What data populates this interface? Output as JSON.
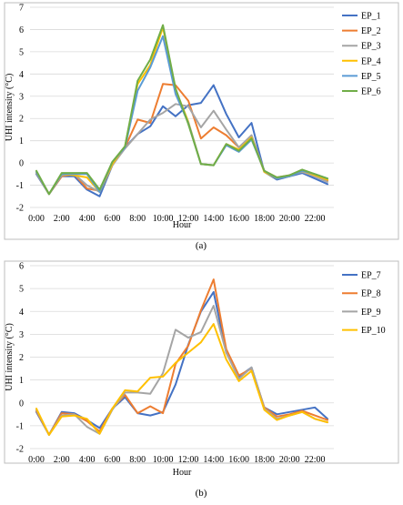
{
  "chart_data": [
    {
      "type": "line",
      "panel_label": "(a)",
      "xlabel": "Hour",
      "ylabel": "UHI intensity (°C)",
      "ylim": [
        -2,
        7
      ],
      "yticks": [
        -2,
        -1,
        0,
        1,
        2,
        3,
        4,
        5,
        6,
        7
      ],
      "x": [
        "0:00",
        "1:00",
        "2:00",
        "3:00",
        "4:00",
        "5:00",
        "6:00",
        "7:00",
        "8:00",
        "9:00",
        "10:00",
        "11:00",
        "12:00",
        "13:00",
        "14:00",
        "15:00",
        "16:00",
        "17:00",
        "18:00",
        "19:00",
        "20:00",
        "21:00",
        "22:00",
        "23:00"
      ],
      "xtick_labels": [
        "0:00",
        "2:00",
        "4:00",
        "6:00",
        "8:00",
        "10:00",
        "12:00",
        "14:00",
        "16:00",
        "18:00",
        "20:00",
        "22:00"
      ],
      "grid": true,
      "legend": "right",
      "series": [
        {
          "name": "EP_1",
          "color": "#4472c4",
          "values": [
            -0.5,
            -1.4,
            -0.6,
            -0.6,
            -1.2,
            -1.5,
            -0.1,
            0.7,
            1.3,
            1.65,
            2.55,
            2.1,
            2.6,
            2.7,
            3.5,
            2.2,
            1.15,
            1.8,
            -0.4,
            -0.75,
            -0.6,
            -0.45,
            -0.7,
            -0.95
          ]
        },
        {
          "name": "EP_2",
          "color": "#ed7d31",
          "values": [
            -0.45,
            -1.4,
            -0.6,
            -0.5,
            -1.15,
            -1.25,
            -0.1,
            0.7,
            1.95,
            1.8,
            3.55,
            3.5,
            2.8,
            1.1,
            1.6,
            1.25,
            0.7,
            1.2,
            -0.35,
            -0.65,
            -0.55,
            -0.35,
            -0.6,
            -0.8
          ]
        },
        {
          "name": "EP_3",
          "color": "#a5a5a5",
          "values": [
            -0.45,
            -1.4,
            -0.55,
            -0.5,
            -1.0,
            -1.3,
            -0.1,
            0.65,
            1.3,
            1.95,
            2.25,
            2.65,
            2.55,
            1.6,
            2.35,
            1.5,
            0.7,
            1.25,
            -0.35,
            -0.7,
            -0.55,
            -0.4,
            -0.6,
            -0.85
          ]
        },
        {
          "name": "EP_4",
          "color": "#ffc000",
          "values": [
            -0.4,
            -1.4,
            -0.5,
            -0.55,
            -0.65,
            -1.3,
            -0.05,
            0.75,
            3.55,
            4.4,
            6.1,
            3.3,
            1.85,
            -0.05,
            -0.1,
            0.85,
            0.6,
            1.15,
            -0.4,
            -0.7,
            -0.6,
            -0.35,
            -0.55,
            -0.75
          ]
        },
        {
          "name": "EP_5",
          "color": "#5b9bd5",
          "values": [
            -0.4,
            -1.4,
            -0.5,
            -0.5,
            -0.5,
            -1.3,
            0.05,
            0.7,
            3.25,
            4.3,
            5.7,
            3.1,
            1.8,
            -0.05,
            -0.1,
            0.8,
            0.5,
            1.05,
            -0.35,
            -0.7,
            -0.6,
            -0.35,
            -0.5,
            -0.7
          ]
        },
        {
          "name": "EP_6",
          "color": "#70ad47",
          "values": [
            -0.35,
            -1.4,
            -0.45,
            -0.45,
            -0.45,
            -1.2,
            0.05,
            0.75,
            3.7,
            4.65,
            6.2,
            3.35,
            1.75,
            -0.05,
            -0.1,
            0.85,
            0.55,
            1.1,
            -0.35,
            -0.65,
            -0.55,
            -0.3,
            -0.5,
            -0.7
          ]
        }
      ]
    },
    {
      "type": "line",
      "panel_label": "(b)",
      "xlabel": "Hour",
      "ylabel": "UHI intensity (°C)",
      "ylim": [
        -2,
        6
      ],
      "yticks": [
        -2,
        -1,
        0,
        1,
        2,
        3,
        4,
        5,
        6
      ],
      "x": [
        "0:00",
        "1:00",
        "2:00",
        "3:00",
        "4:00",
        "5:00",
        "6:00",
        "7:00",
        "8:00",
        "9:00",
        "10:00",
        "11:00",
        "12:00",
        "13:00",
        "14:00",
        "15:00",
        "16:00",
        "17:00",
        "18:00",
        "19:00",
        "20:00",
        "21:00",
        "22:00",
        "23:00"
      ],
      "xtick_labels": [
        "0:00",
        "2:00",
        "4:00",
        "6:00",
        "8:00",
        "10:00",
        "12:00",
        "14:00",
        "16:00",
        "18:00",
        "20:00",
        "22:00"
      ],
      "grid": true,
      "legend": "right",
      "series": [
        {
          "name": "EP_7",
          "color": "#4472c4",
          "values": [
            -0.4,
            -1.4,
            -0.4,
            -0.45,
            -0.75,
            -1.1,
            -0.25,
            0.25,
            -0.45,
            -0.55,
            -0.4,
            0.8,
            2.55,
            4.0,
            4.85,
            2.2,
            1.15,
            1.55,
            -0.2,
            -0.5,
            -0.4,
            -0.3,
            -0.2,
            -0.7
          ]
        },
        {
          "name": "EP_8",
          "color": "#ed7d31",
          "values": [
            -0.35,
            -1.4,
            -0.45,
            -0.5,
            -0.8,
            -1.25,
            -0.25,
            0.35,
            -0.45,
            -0.15,
            -0.45,
            1.7,
            2.5,
            4.05,
            5.4,
            2.35,
            1.2,
            1.5,
            -0.2,
            -0.6,
            -0.5,
            -0.35,
            -0.55,
            -0.75
          ]
        },
        {
          "name": "EP_9",
          "color": "#a5a5a5",
          "values": [
            -0.3,
            -1.4,
            -0.55,
            -0.5,
            -1.05,
            -1.35,
            -0.3,
            0.45,
            0.45,
            0.4,
            1.3,
            3.2,
            2.85,
            3.1,
            4.25,
            2.2,
            1.05,
            1.55,
            -0.25,
            -0.7,
            -0.55,
            -0.4,
            -0.7,
            -0.85
          ]
        },
        {
          "name": "EP_10",
          "color": "#ffc000",
          "values": [
            -0.25,
            -1.4,
            -0.6,
            -0.55,
            -0.7,
            -1.35,
            -0.25,
            0.55,
            0.5,
            1.1,
            1.15,
            1.75,
            2.2,
            2.65,
            3.45,
            1.9,
            0.95,
            1.4,
            -0.3,
            -0.75,
            -0.55,
            -0.4,
            -0.7,
            -0.85
          ]
        }
      ]
    }
  ]
}
